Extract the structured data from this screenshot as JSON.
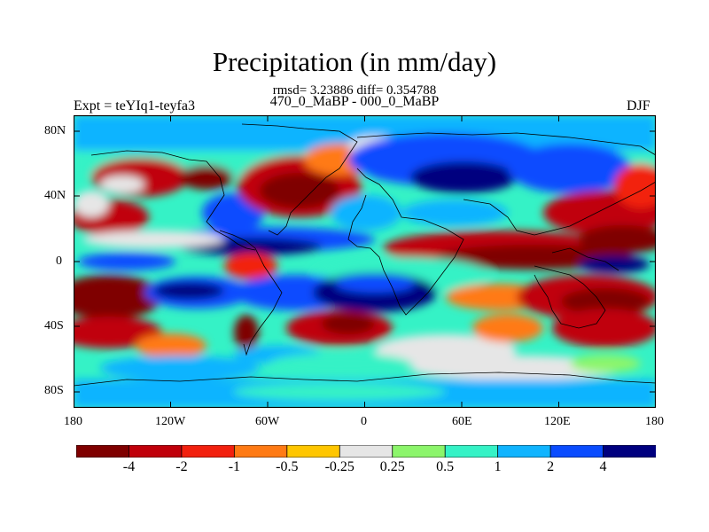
{
  "title": "Precipitation (in mm/day)",
  "stats": "rmsd= 3.23886  diff= 0.354788",
  "subtitle": "470_0_MaBP - 000_0_MaBP",
  "experiment": "Expt = teYIq1-teyfa3",
  "season": "DJF",
  "lat_ticks": [
    "80N",
    "40N",
    "0",
    "40S",
    "80S"
  ],
  "lon_ticks": [
    "180",
    "120W",
    "60W",
    "0",
    "60E",
    "120E",
    "180"
  ],
  "colorbar": {
    "colors": [
      "#7f0000",
      "#c0000a",
      "#f2200e",
      "#ff7a14",
      "#ffc600",
      "#e6e6e6",
      "#8cf56b",
      "#35f2c6",
      "#10b4ff",
      "#0a4cff",
      "#00007f"
    ],
    "labels": [
      "-4",
      "-2",
      "-1",
      "-0.5",
      "-0.25",
      "0.25",
      "0.5",
      "1",
      "2",
      "4"
    ]
  }
}
